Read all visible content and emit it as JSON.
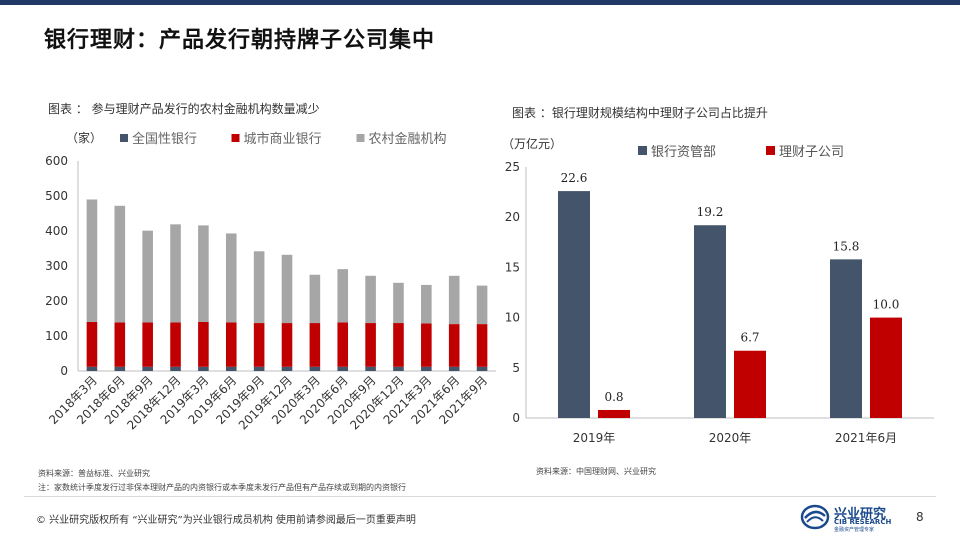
{
  "header": {
    "title": "银行理财：产品发行朝持牌子公司集中"
  },
  "left_panel": {
    "caption": "图表 ： 参与理财产品发行的农村金融机构数量减少",
    "source": "资料来源：普益标准、兴业研究",
    "footnote": "注：家数统计季度发行过非保本理财产品的内资银行或本季度未发行产品但有产品存续或到期的内资银行"
  },
  "right_panel": {
    "caption": "图表 ：银行理财规模结构中理财子公司占比提升",
    "source": "资料来源：中国理财网、兴业研究"
  },
  "footer": {
    "copyright": "©  兴业研究版权所有   “兴业研究”为兴业银行成员机构   使用前请参阅最后一页重要声明",
    "page_number": "8",
    "logo_cn": "兴业研究",
    "logo_en": "CIB RESEARCH",
    "logo_sub": "金融资产管理专家"
  },
  "colors": {
    "accent_bar": "#1f3864",
    "navy": "#44546a",
    "red": "#c00000",
    "gray": "#a6a6a6"
  },
  "chart_data": [
    {
      "type": "bar",
      "stacked": true,
      "unit_label": "（家）",
      "categories": [
        "2018年3月",
        "2018年6月",
        "2018年9月",
        "2018年12月",
        "2019年3月",
        "2019年6月",
        "2019年9月",
        "2019年12月",
        "2020年3月",
        "2020年6月",
        "2020年9月",
        "2020年12月",
        "2021年3月",
        "2021年6月",
        "2021年9月"
      ],
      "series": [
        {
          "name": "全国性银行",
          "color": "#44546a",
          "values": [
            12,
            12,
            12,
            12,
            12,
            12,
            12,
            12,
            12,
            12,
            12,
            12,
            12,
            12,
            12
          ]
        },
        {
          "name": "城市商业银行",
          "color": "#c00000",
          "values": [
            128,
            127,
            127,
            127,
            128,
            127,
            125,
            125,
            125,
            127,
            125,
            125,
            124,
            122,
            122
          ]
        },
        {
          "name": "农村金融机构",
          "color": "#a6a6a6",
          "values": [
            350,
            333,
            262,
            280,
            276,
            254,
            205,
            195,
            138,
            152,
            135,
            115,
            110,
            138,
            110
          ]
        }
      ],
      "ylim": [
        0,
        600
      ],
      "yticks": [
        0,
        100,
        200,
        300,
        400,
        500,
        600
      ],
      "legend": "top"
    },
    {
      "type": "bar",
      "unit_label": "（万亿元）",
      "categories": [
        "2019年",
        "2020年",
        "2021年6月"
      ],
      "series": [
        {
          "name": "银行资管部",
          "color": "#44546a",
          "values": [
            22.6,
            19.2,
            15.8
          ],
          "labels": [
            "22.6",
            "19.2",
            "15.8"
          ]
        },
        {
          "name": "理财子公司",
          "color": "#c00000",
          "values": [
            0.8,
            6.7,
            10.0
          ],
          "labels": [
            "0.8",
            "6.7",
            "10.0"
          ]
        }
      ],
      "ylim": [
        0,
        25
      ],
      "yticks": [
        0,
        5,
        10,
        15,
        20,
        25
      ],
      "legend": "top"
    }
  ]
}
